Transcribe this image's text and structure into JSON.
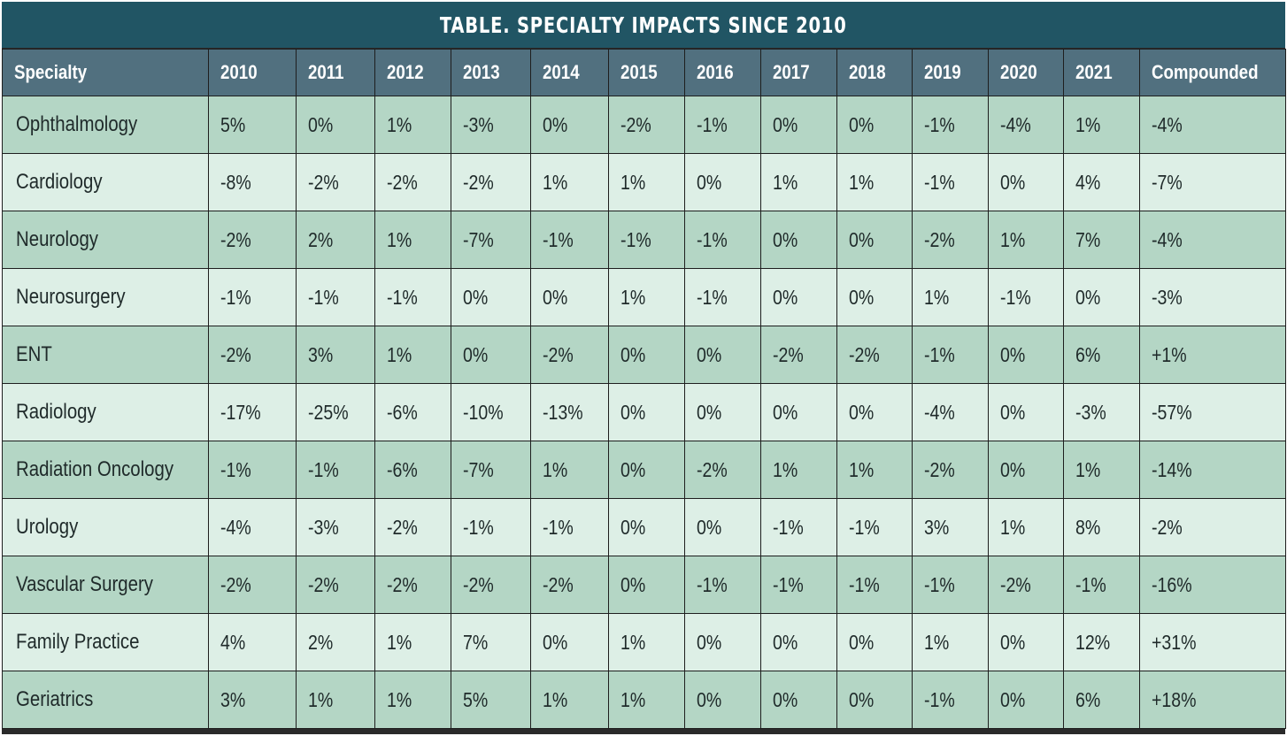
{
  "title": "TABLE. SPECIALTY IMPACTS SINCE 2010",
  "colors": {
    "title_bg": "#215564",
    "header_bg": "#51707f",
    "row_dark": "#b4d6c5",
    "row_light": "#ddefe6"
  },
  "columns": [
    "Specialty",
    "2010",
    "2011",
    "2012",
    "2013",
    "2014",
    "2015",
    "2016",
    "2017",
    "2018",
    "2019",
    "2020",
    "2021",
    "Compounded"
  ],
  "rows": [
    [
      "Ophthalmology",
      "5%",
      "0%",
      "1%",
      "-3%",
      "0%",
      "-2%",
      "-1%",
      "0%",
      "0%",
      "-1%",
      "-4%",
      "1%",
      "-4%"
    ],
    [
      "Cardiology",
      "-8%",
      "-2%",
      "-2%",
      "-2%",
      "1%",
      "1%",
      "0%",
      "1%",
      "1%",
      "-1%",
      "0%",
      "4%",
      "-7%"
    ],
    [
      "Neurology",
      "-2%",
      "2%",
      "1%",
      "-7%",
      "-1%",
      "-1%",
      "-1%",
      "0%",
      "0%",
      "-2%",
      "1%",
      "7%",
      "-4%"
    ],
    [
      "Neurosurgery",
      "-1%",
      "-1%",
      "-1%",
      "0%",
      "0%",
      "1%",
      "-1%",
      "0%",
      "0%",
      "1%",
      "-1%",
      "0%",
      "-3%"
    ],
    [
      "ENT",
      "-2%",
      "3%",
      "1%",
      "0%",
      "-2%",
      "0%",
      "0%",
      "-2%",
      "-2%",
      "-1%",
      "0%",
      "6%",
      "+1%"
    ],
    [
      "Radiology",
      "-17%",
      "-25%",
      "-6%",
      "-10%",
      "-13%",
      "0%",
      "0%",
      "0%",
      "0%",
      "-4%",
      "0%",
      "-3%",
      "-57%"
    ],
    [
      "Radiation Oncology",
      "-1%",
      "-1%",
      "-6%",
      "-7%",
      "1%",
      "0%",
      "-2%",
      "1%",
      "1%",
      "-2%",
      "0%",
      "1%",
      "-14%"
    ],
    [
      "Urology",
      "-4%",
      "-3%",
      "-2%",
      "-1%",
      "-1%",
      "0%",
      "0%",
      "-1%",
      "-1%",
      "3%",
      "1%",
      "8%",
      "-2%"
    ],
    [
      "Vascular Surgery",
      "-2%",
      "-2%",
      "-2%",
      "-2%",
      "-2%",
      "0%",
      "-1%",
      "-1%",
      "-1%",
      "-1%",
      "-2%",
      "-1%",
      "-16%"
    ],
    [
      "Family Practice",
      "4%",
      "2%",
      "1%",
      "7%",
      "0%",
      "1%",
      "0%",
      "0%",
      "0%",
      "1%",
      "0%",
      "12%",
      "+31%"
    ],
    [
      "Geriatrics",
      "3%",
      "1%",
      "1%",
      "5%",
      "1%",
      "1%",
      "0%",
      "0%",
      "0%",
      "-1%",
      "0%",
      "6%",
      "+18%"
    ]
  ]
}
